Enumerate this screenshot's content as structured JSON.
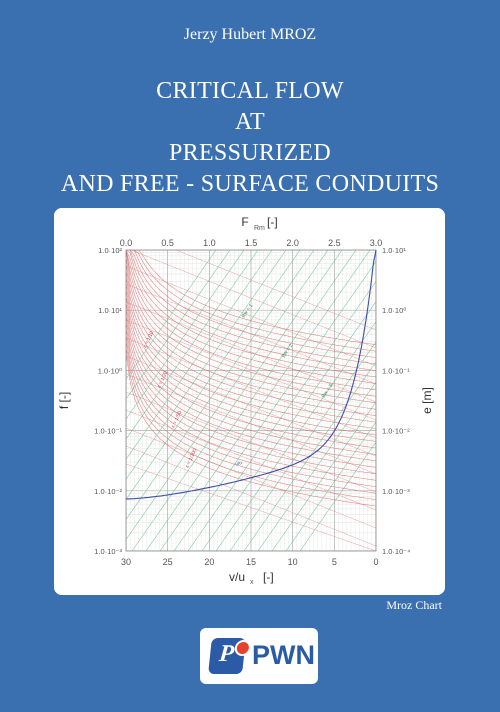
{
  "cover": {
    "author": "Jerzy Hubert MROZ",
    "title_lines": [
      "CRITICAL FLOW",
      "AT",
      "PRESSURIZED",
      "AND FREE - SURFACE CONDUITS"
    ],
    "chart_caption": "Mroz Chart",
    "publisher_mark": "P",
    "publisher_name": "PWN",
    "colors": {
      "background": "#3a6fb0",
      "text": "#ffffff",
      "red_family": "#e06a6a",
      "green_family": "#5bbf86",
      "blue_curve": "#3b4ea8"
    }
  },
  "chart_data": {
    "type": "line",
    "title": "",
    "top_axis": {
      "label": "F",
      "label_subscript": "Rm",
      "label_unit": "[-]",
      "ticks": [
        "0.0",
        "0.5",
        "1.0",
        "1.5",
        "2.0",
        "2.5",
        "3.0"
      ],
      "range": [
        0,
        3
      ]
    },
    "bottom_axis": {
      "label": "v/u",
      "label_subscript": "x",
      "label_unit": "[-]",
      "ticks": [
        "30",
        "25",
        "20",
        "15",
        "10",
        "5",
        "0"
      ],
      "range": [
        30,
        0
      ]
    },
    "left_axis": {
      "label": "f [-]",
      "scale": "log",
      "ticks": [
        "1.0·10⁻³",
        "1.0·10⁻²",
        "1.0·10⁻¹",
        "1.0·10⁰",
        "1.0·10¹",
        "1.0·10²"
      ],
      "range": [
        0.001,
        100
      ]
    },
    "right_axis": {
      "label": "e [m]",
      "scale": "log",
      "ticks": [
        "1.0·10⁻⁴",
        "1.0·10⁻³",
        "1.0·10⁻²",
        "1.0·10⁻¹",
        "1.0·10⁰",
        "1.0·10¹"
      ],
      "range": [
        0.0001,
        10
      ]
    },
    "grid": true,
    "series": [
      {
        "family": "red",
        "name": "ε = 1/10",
        "color": "#e06a6a"
      },
      {
        "family": "red",
        "name": "ε = 1/20",
        "color": "#e06a6a"
      },
      {
        "family": "red",
        "name": "ε = 1/50",
        "color": "#e06a6a"
      },
      {
        "family": "red",
        "name": "ε = 1/100",
        "color": "#e06a6a"
      },
      {
        "family": "green",
        "name": "Bw = 1",
        "color": "#5bbf86"
      },
      {
        "family": "green",
        "name": "Bw = 2",
        "color": "#5bbf86"
      },
      {
        "family": "green",
        "name": "Bw = 5",
        "color": "#5bbf86"
      },
      {
        "family": "blue",
        "name": "v/u",
        "color": "#3b4ea8"
      }
    ]
  }
}
